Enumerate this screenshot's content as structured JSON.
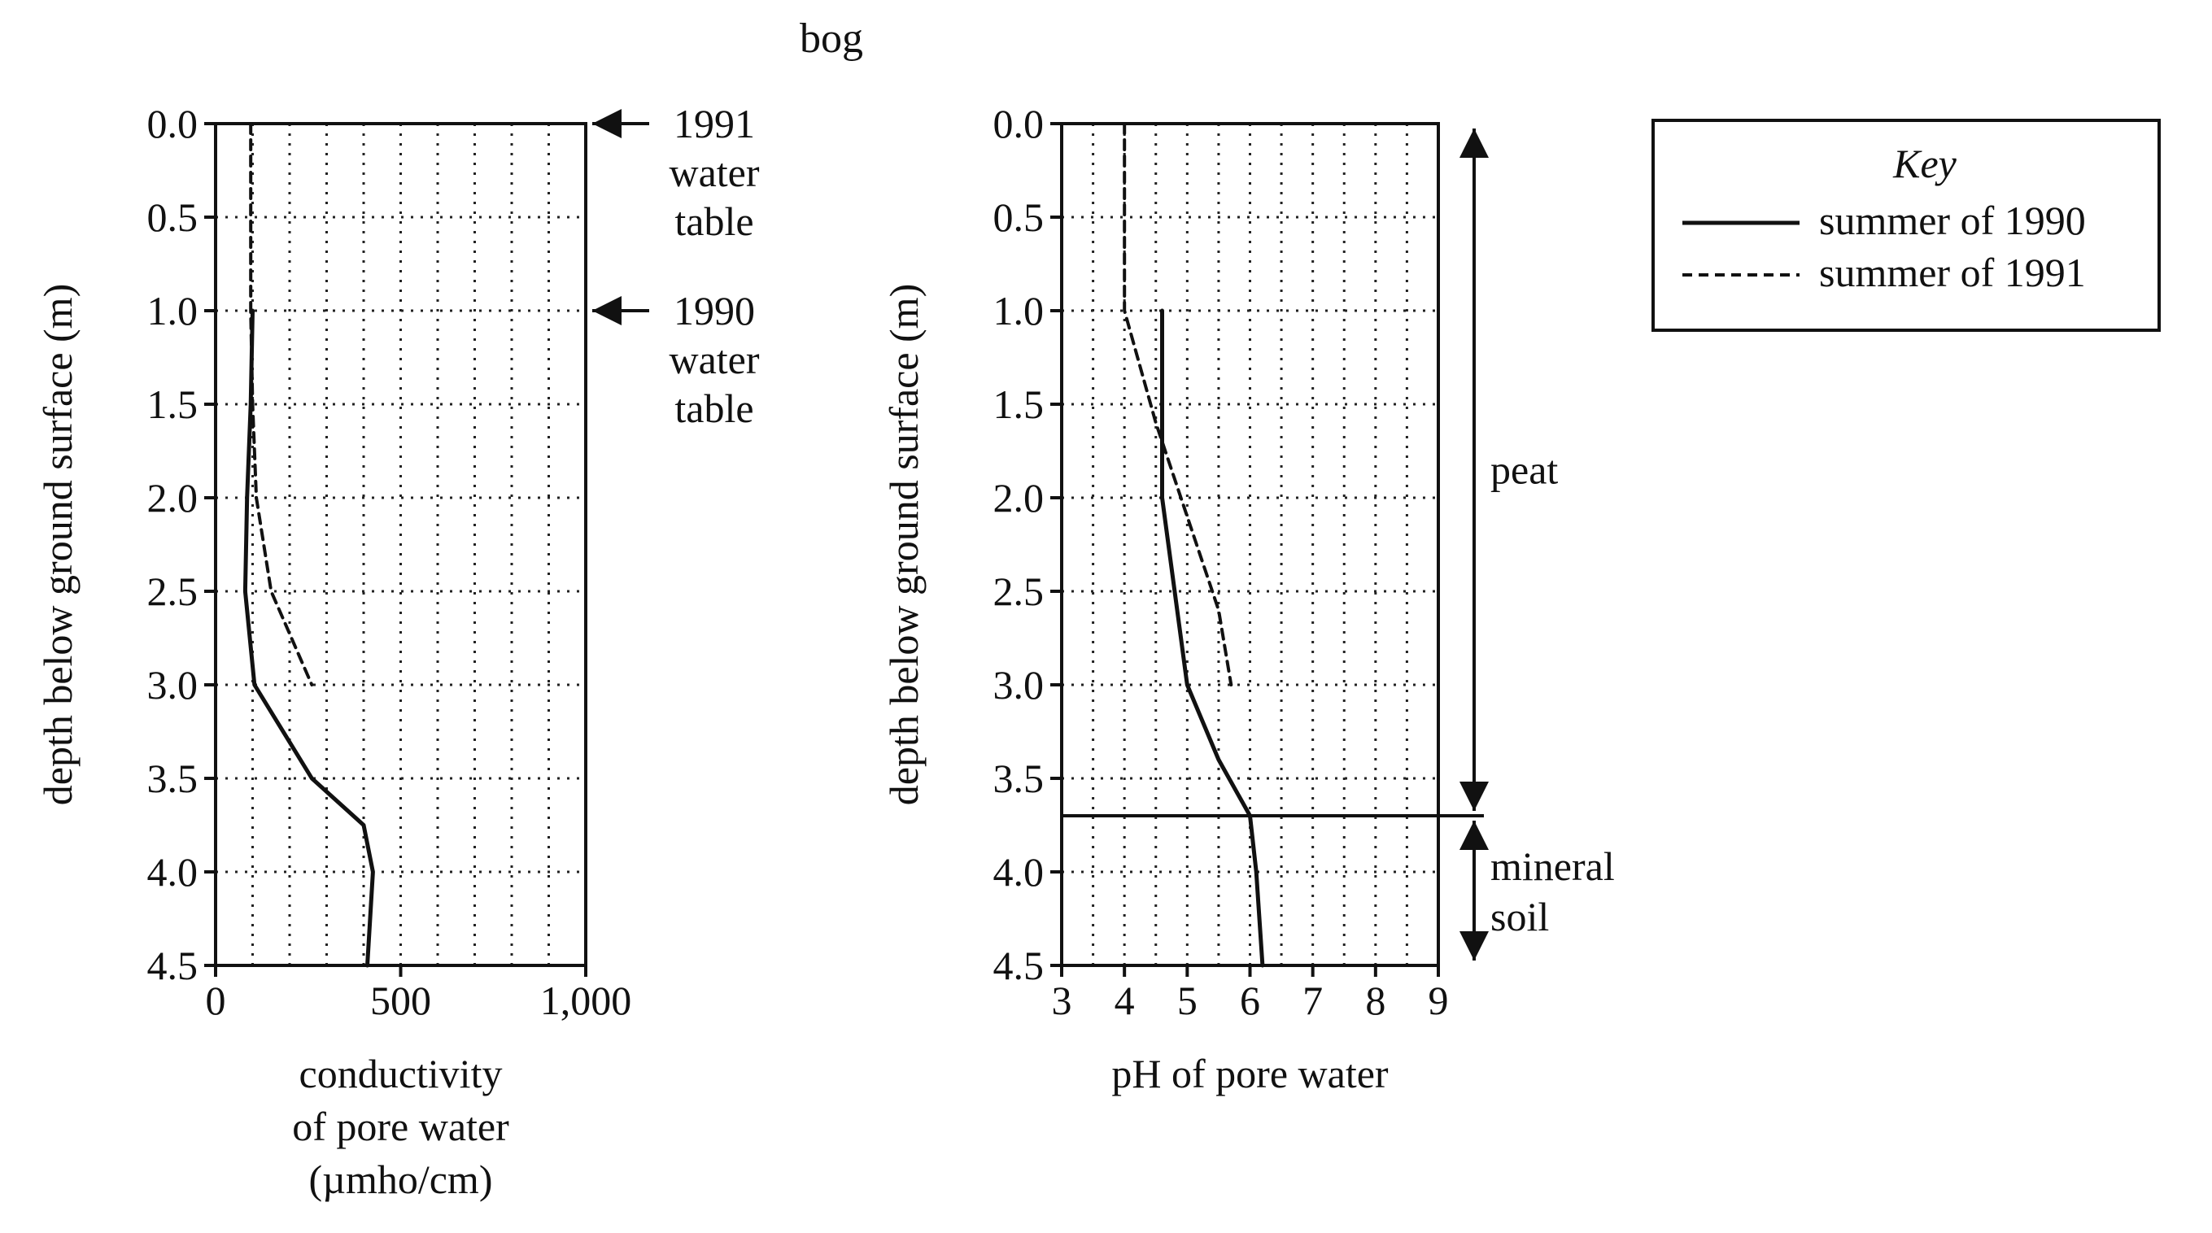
{
  "figure_title": "bog",
  "chart_data": [
    {
      "type": "line",
      "id": "conductivity",
      "xlabel": [
        "conductivity",
        "of pore water",
        "(µmho/cm)"
      ],
      "ylabel": "depth below ground surface (m)",
      "xlim": [
        0,
        1000
      ],
      "ylim": [
        0,
        4.5
      ],
      "y_inverted": true,
      "grid": true,
      "xticks": [
        0,
        500,
        1000
      ],
      "xtick_labels": [
        "0",
        "500",
        "1,000"
      ],
      "yticks": [
        0,
        0.5,
        1,
        1.5,
        2,
        2.5,
        3,
        3.5,
        4,
        4.5
      ],
      "ytick_labels": [
        "0.0",
        "0.5",
        "1.0",
        "1.5",
        "2.0",
        "2.5",
        "3.0",
        "3.5",
        "4.0",
        "4.5"
      ],
      "series": [
        {
          "name": "summer of 1990",
          "style": "solid",
          "points": [
            [
              100,
              1.0
            ],
            [
              95,
              1.5
            ],
            [
              85,
              2.0
            ],
            [
              80,
              2.5
            ],
            [
              105,
              3.0
            ],
            [
              260,
              3.5
            ],
            [
              400,
              3.75
            ],
            [
              425,
              4.0
            ],
            [
              410,
              4.5
            ]
          ]
        },
        {
          "name": "summer of 1991",
          "style": "dashed",
          "points": [
            [
              95,
              0.0
            ],
            [
              95,
              0.5
            ],
            [
              95,
              1.0
            ],
            [
              100,
              1.5
            ],
            [
              110,
              2.0
            ],
            [
              150,
              2.5
            ],
            [
              260,
              3.0
            ]
          ]
        }
      ],
      "annotations": [
        {
          "label": [
            "1991",
            "water",
            "table"
          ],
          "depth": 0.0
        },
        {
          "label": [
            "1990",
            "water",
            "table"
          ],
          "depth": 1.0
        }
      ]
    },
    {
      "type": "line",
      "id": "ph",
      "xlabel": [
        "pH of pore water"
      ],
      "ylabel": "depth below ground surface (m)",
      "xlim": [
        3,
        9
      ],
      "ylim": [
        0,
        4.5
      ],
      "y_inverted": true,
      "grid": true,
      "xticks": [
        3,
        4,
        5,
        6,
        7,
        8,
        9
      ],
      "xtick_labels": [
        "3",
        "4",
        "5",
        "6",
        "7",
        "8",
        "9"
      ],
      "yticks": [
        0,
        0.5,
        1,
        1.5,
        2,
        2.5,
        3,
        3.5,
        4,
        4.5
      ],
      "ytick_labels": [
        "0.0",
        "0.5",
        "1.0",
        "1.5",
        "2.0",
        "2.5",
        "3.0",
        "3.5",
        "4.0",
        "4.5"
      ],
      "series": [
        {
          "name": "summer of 1990",
          "style": "solid",
          "points": [
            [
              4.6,
              1.0
            ],
            [
              4.6,
              1.5
            ],
            [
              4.6,
              2.0
            ],
            [
              4.8,
              2.5
            ],
            [
              5.0,
              3.0
            ],
            [
              5.5,
              3.4
            ],
            [
              6.0,
              3.7
            ],
            [
              6.1,
              4.0
            ],
            [
              6.2,
              4.5
            ]
          ]
        },
        {
          "name": "summer of 1991",
          "style": "dashed",
          "points": [
            [
              4.0,
              0.0
            ],
            [
              4.0,
              0.5
            ],
            [
              4.0,
              1.0
            ],
            [
              4.5,
              1.6
            ],
            [
              5.0,
              2.1
            ],
            [
              5.5,
              2.6
            ],
            [
              5.7,
              3.0
            ]
          ]
        }
      ],
      "boundary_depth": 3.7,
      "layers": [
        {
          "label": [
            "peat"
          ],
          "from": 0.0,
          "to": 3.7
        },
        {
          "label": [
            "mineral",
            "soil"
          ],
          "from": 3.7,
          "to": 4.5
        }
      ]
    }
  ],
  "legend": {
    "title": "Key",
    "entries": [
      {
        "label": "summer of 1990",
        "style": "solid"
      },
      {
        "label": "summer of 1991",
        "style": "dashed"
      }
    ]
  }
}
